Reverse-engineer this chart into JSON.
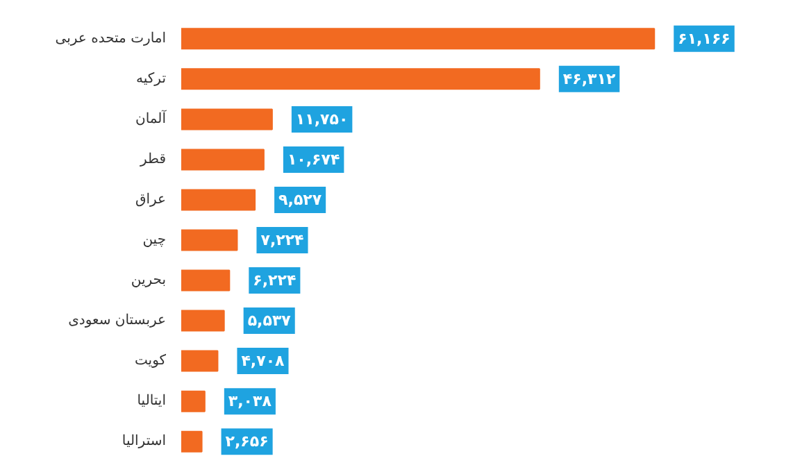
{
  "chart_data": {
    "type": "bar",
    "orientation": "horizontal",
    "categories": [
      "امارت متحده عربی",
      "ترکیه",
      "آلمان",
      "قطر",
      "عراق",
      "چین",
      "بحرین",
      "عربستان سعودی",
      "کویت",
      "ایتالیا",
      "استرالیا"
    ],
    "values": [
      61166,
      46312,
      11750,
      10674,
      9527,
      7224,
      6224,
      5537,
      4708,
      3038,
      2656
    ],
    "value_labels": [
      "۶۱,۱۶۶",
      "۴۶,۳۱۲",
      "۱۱,۷۵۰",
      "۱۰,۶۷۴",
      "۹,۵۲۷",
      "۷,۲۲۴",
      "۶,۲۲۴",
      "۵,۵۳۷",
      "۴,۷۰۸",
      "۳,۰۳۸",
      "۲,۶۵۶"
    ],
    "color": "#f26a21",
    "grid": false
  }
}
